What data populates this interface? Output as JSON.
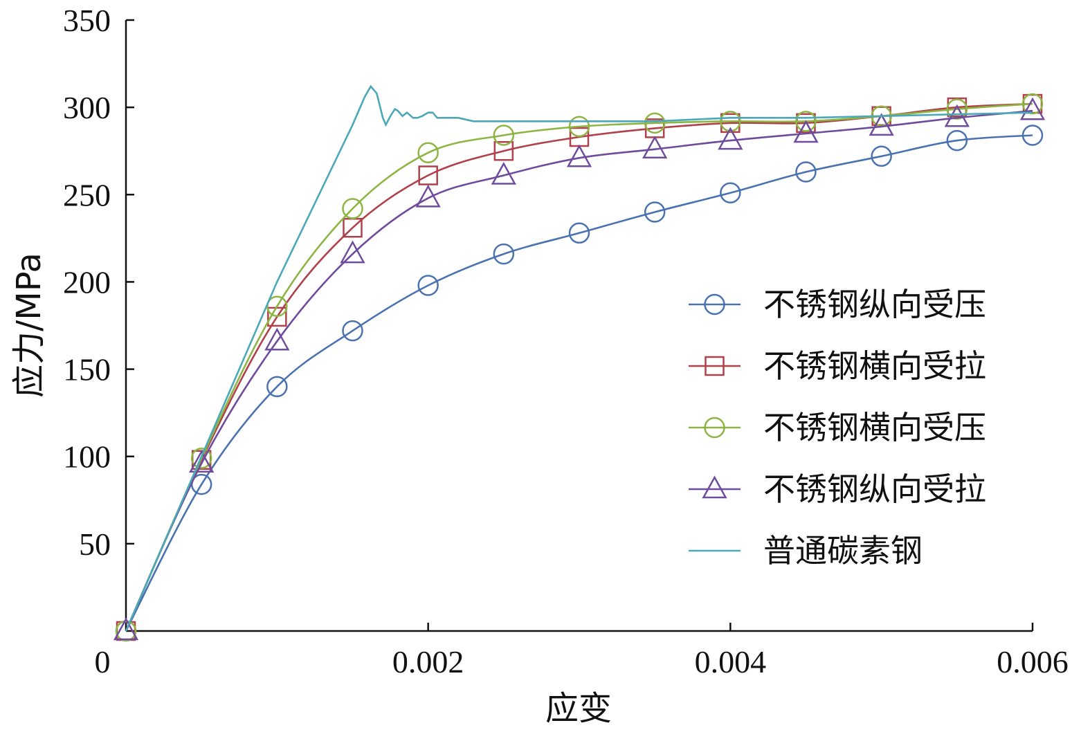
{
  "chart_data": {
    "type": "line",
    "xlabel": "应变",
    "ylabel": "应力/MPa",
    "xlim": [
      0,
      0.006
    ],
    "ylim": [
      0,
      350
    ],
    "x_ticks": [
      {
        "value": 0,
        "label": "0"
      },
      {
        "value": 0.002,
        "label": "0.002"
      },
      {
        "value": 0.004,
        "label": "0.004"
      },
      {
        "value": 0.006,
        "label": "0.006"
      }
    ],
    "y_ticks": [
      {
        "value": 50,
        "label": "50"
      },
      {
        "value": 100,
        "label": "100"
      },
      {
        "value": 150,
        "label": "150"
      },
      {
        "value": 200,
        "label": "200"
      },
      {
        "value": 250,
        "label": "250"
      },
      {
        "value": 300,
        "label": "300"
      },
      {
        "value": 350,
        "label": "350"
      }
    ],
    "grid": false,
    "legend_position": "right",
    "series": [
      {
        "name": "不锈钢纵向受压",
        "color": "#4a72b0",
        "marker": "circle",
        "x": [
          0,
          0.0005,
          0.001,
          0.0015,
          0.002,
          0.0025,
          0.003,
          0.0035,
          0.004,
          0.0045,
          0.005,
          0.0055,
          0.006
        ],
        "y": [
          0,
          84,
          140,
          172,
          198,
          216,
          228,
          240,
          251,
          263,
          272,
          281,
          284
        ]
      },
      {
        "name": "不锈钢横向受拉",
        "color": "#b0404a",
        "marker": "square",
        "x": [
          0,
          0.0005,
          0.001,
          0.0015,
          0.002,
          0.0025,
          0.003,
          0.0035,
          0.004,
          0.0045,
          0.005,
          0.0055,
          0.006
        ],
        "y": [
          0,
          98,
          180,
          231,
          261,
          275,
          283,
          288,
          291,
          291,
          295,
          300,
          302
        ]
      },
      {
        "name": "不锈钢横向受压",
        "color": "#8db543",
        "marker": "circle",
        "x": [
          0,
          0.0005,
          0.001,
          0.0015,
          0.002,
          0.0025,
          0.003,
          0.0035,
          0.004,
          0.0045,
          0.005,
          0.0055,
          0.006
        ],
        "y": [
          0,
          99,
          186,
          242,
          274,
          284,
          289,
          291,
          292,
          292,
          295,
          299,
          302
        ]
      },
      {
        "name": "不锈钢纵向受拉",
        "color": "#6e4b9c",
        "marker": "triangle",
        "x": [
          0,
          0.0005,
          0.001,
          0.0015,
          0.002,
          0.0025,
          0.003,
          0.0035,
          0.004,
          0.0045,
          0.005,
          0.0055,
          0.006
        ],
        "y": [
          0,
          96,
          166,
          216,
          248,
          261,
          271,
          276,
          281,
          285,
          289,
          294,
          298
        ]
      },
      {
        "name": "普通碳素钢",
        "color": "#4aa8b8",
        "marker": "none",
        "x": [
          0,
          0.0005,
          0.001,
          0.0015,
          0.00158,
          0.00162,
          0.00166,
          0.0017,
          0.00172,
          0.00175,
          0.00178,
          0.0018,
          0.00183,
          0.00186,
          0.0019,
          0.00193,
          0.00196,
          0.002,
          0.00203,
          0.00206,
          0.0021,
          0.0022,
          0.0023,
          0.0024,
          0.0027,
          0.003,
          0.0035,
          0.004,
          0.0045,
          0.005,
          0.0055,
          0.006
        ],
        "y": [
          0,
          100,
          200,
          290,
          306,
          312,
          308,
          294,
          290,
          295,
          299,
          298,
          295,
          297,
          294,
          294,
          295,
          297,
          297,
          294,
          294,
          294,
          292,
          292,
          292,
          292,
          292,
          294,
          294,
          295,
          296,
          297
        ]
      }
    ]
  }
}
